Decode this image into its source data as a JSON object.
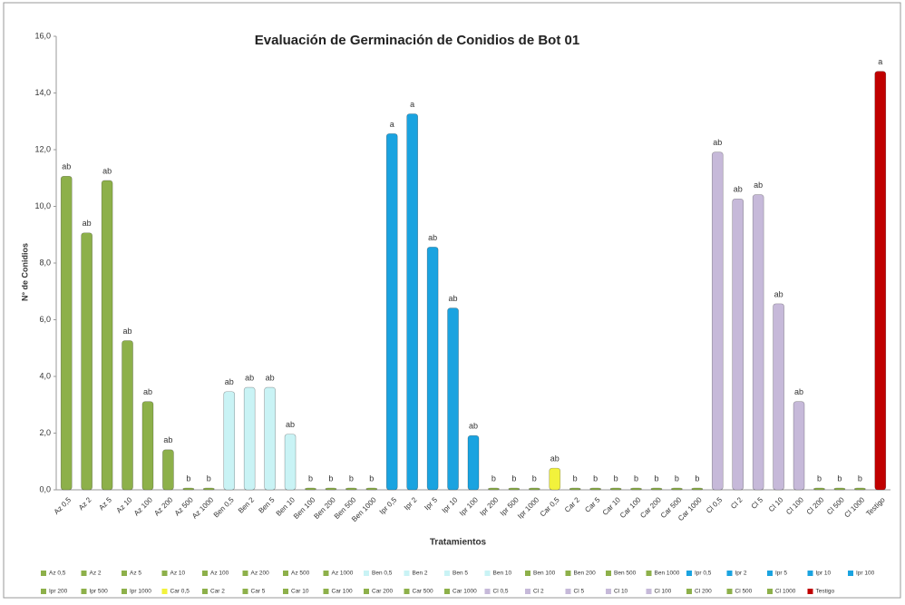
{
  "chart_data": {
    "type": "bar",
    "title": "Evaluación de Germinación de Conidios de Bot 01",
    "x_label": "Tratamientos",
    "y_label": "N° de Conidios",
    "categories": [
      "Az 0,5",
      "Az 2",
      "Az 5",
      "Az 10",
      "Az 100",
      "Az 200",
      "Az 500",
      "Az 1000",
      "Ben 0,5",
      "Ben 2",
      "Ben 5",
      "Ben 10",
      "Ben 100",
      "Ben 200",
      "Ben 500",
      "Ben 1000",
      "Ipr 0,5",
      "Ipr 2",
      "Ipr 5",
      "Ipr 10",
      "Ipr 100",
      "Ipr 200",
      "Ipr 500",
      "Ipr 1000",
      "Car 0,5",
      "Car 2",
      "Car 5",
      "Car 10",
      "Car 100",
      "Car 200",
      "Car 500",
      "Car 1000",
      "Cl 0,5",
      "Cl 2",
      "Cl 5",
      "Cl 10",
      "Cl 100",
      "Cl 200",
      "Cl 500",
      "Cl 1000",
      "Testigo"
    ],
    "values": [
      11.0,
      9.0,
      10.85,
      5.2,
      3.05,
      1.35,
      0,
      0,
      3.4,
      3.55,
      3.55,
      1.9,
      0,
      0,
      0,
      0,
      12.5,
      13.2,
      8.5,
      6.35,
      1.85,
      0,
      0,
      0,
      0.7,
      0,
      0,
      0,
      0,
      0,
      0,
      0,
      11.85,
      10.2,
      10.35,
      6.5,
      3.05,
      0,
      0,
      0,
      14.7
    ],
    "annotations": [
      "ab",
      "ab",
      "ab",
      "ab",
      "ab",
      "ab",
      "b",
      "b",
      "ab",
      "ab",
      "ab",
      "ab",
      "b",
      "b",
      "b",
      "b",
      "a",
      "a",
      "ab",
      "ab",
      "ab",
      "b",
      "b",
      "b",
      "ab",
      "b",
      "b",
      "b",
      "b",
      "b",
      "b",
      "b",
      "ab",
      "ab",
      "ab",
      "ab",
      "ab",
      "b",
      "b",
      "b",
      "a"
    ],
    "colors": [
      "#8db04a",
      "#8db04a",
      "#8db04a",
      "#8db04a",
      "#8db04a",
      "#8db04a",
      "#8db04a",
      "#8db04a",
      "#c9f3f5",
      "#c9f3f5",
      "#c9f3f5",
      "#c9f3f5",
      "#8db04a",
      "#8db04a",
      "#8db04a",
      "#8db04a",
      "#1aa3e0",
      "#1aa3e0",
      "#1aa3e0",
      "#1aa3e0",
      "#1aa3e0",
      "#8db04a",
      "#8db04a",
      "#8db04a",
      "#f2f23c",
      "#8db04a",
      "#8db04a",
      "#8db04a",
      "#8db04a",
      "#8db04a",
      "#8db04a",
      "#8db04a",
      "#c6b9d9",
      "#c6b9d9",
      "#c6b9d9",
      "#c6b9d9",
      "#c6b9d9",
      "#8db04a",
      "#8db04a",
      "#8db04a",
      "#c00000"
    ],
    "ylim": [
      0,
      16
    ],
    "yticks": [
      {
        "value": 0,
        "label": "0,0"
      },
      {
        "value": 2,
        "label": "2,0"
      },
      {
        "value": 4,
        "label": "4,0"
      },
      {
        "value": 6,
        "label": "6,0"
      },
      {
        "value": 8,
        "label": "8,0"
      },
      {
        "value": 10,
        "label": "10,0"
      },
      {
        "value": 12,
        "label": "12,0"
      },
      {
        "value": 14,
        "label": "14,0"
      },
      {
        "value": 16,
        "label": "16,0"
      }
    ]
  }
}
